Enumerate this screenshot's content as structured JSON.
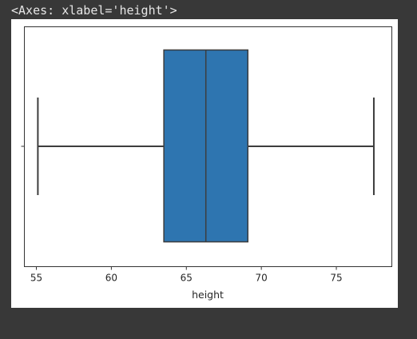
{
  "output": {
    "repr_text": "<Axes: xlabel='height'>"
  },
  "chart_data": {
    "type": "boxplot",
    "orientation": "horizontal",
    "xlabel": "height",
    "ylabel": "",
    "xlim": [
      54.2,
      78.7
    ],
    "xticks": [
      55,
      60,
      65,
      70,
      75
    ],
    "box": {
      "whisker_low": 55.1,
      "q1": 63.5,
      "median": 66.3,
      "q3": 69.1,
      "whisker_high": 77.5
    },
    "colors": {
      "box_fill": "#2e75b0",
      "line": "#3d3d3d"
    },
    "grid": false
  }
}
